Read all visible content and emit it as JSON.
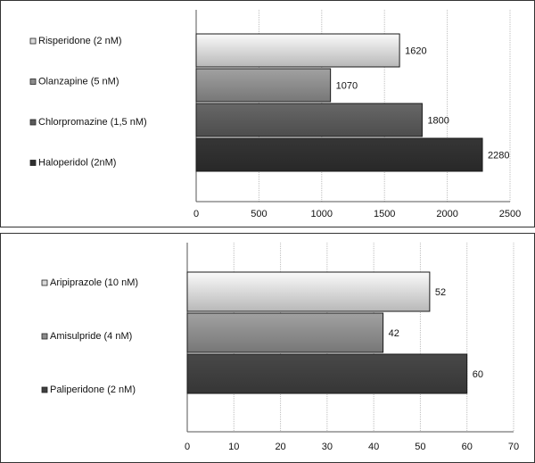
{
  "chart_data": [
    {
      "type": "bar",
      "orientation": "horizontal",
      "categories": [
        "Risperidone (2 nM)",
        "Olanzapine (5 nM)",
        "Chlorpromazine (1,5 nM)",
        "Haloperidol (2nM)"
      ],
      "values": [
        1620,
        1070,
        1800,
        2280
      ],
      "value_labels": [
        "1620",
        "1070",
        "1800",
        "2280"
      ],
      "colors": [
        "#d9d9d9",
        "#8c8c8c",
        "#5a5a5a",
        "#2f2f2f"
      ],
      "xlim": [
        0,
        2500
      ],
      "xticks": [
        "0",
        "500",
        "1000",
        "1500",
        "2000",
        "2500"
      ],
      "grid": true,
      "legend": "left"
    },
    {
      "type": "bar",
      "orientation": "horizontal",
      "categories": [
        "Aripiprazole (10 nM)",
        "Amisulpride (4 nM)",
        "Paliperidone (2 nM)"
      ],
      "values": [
        52,
        42,
        60
      ],
      "value_labels": [
        "52",
        "42",
        "60"
      ],
      "colors": [
        "#d9d9d9",
        "#8c8c8c",
        "#3f3f3f"
      ],
      "xlim": [
        0,
        70
      ],
      "xticks": [
        "0",
        "10",
        "20",
        "30",
        "40",
        "50",
        "60",
        "70"
      ],
      "grid": true,
      "legend": "left"
    }
  ]
}
